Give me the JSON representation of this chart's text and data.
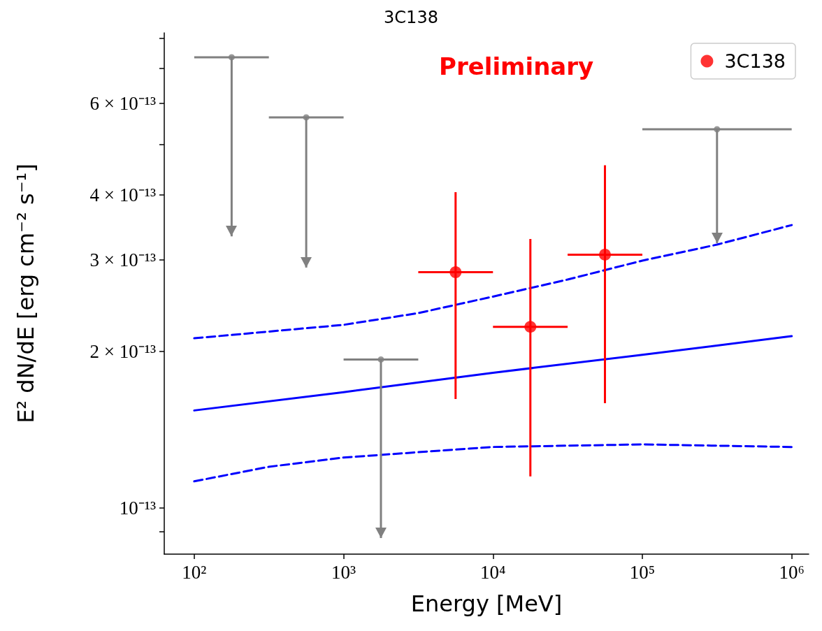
{
  "chart_data": {
    "type": "scatter",
    "title": "3C138",
    "xlabel": "Energy [MeV]",
    "ylabel": "E² dN/dE [erg cm⁻² s⁻¹]",
    "annotations": [
      "Preliminary"
    ],
    "log": "xy",
    "grid": false,
    "legend": "top right",
    "xlim": [
      63,
      1300000
    ],
    "ylim": [
      8.15e-14,
      8.2e-13
    ],
    "xticks": [
      {
        "value": 100,
        "label": "10²"
      },
      {
        "value": 1000,
        "label": "10³"
      },
      {
        "value": 10000,
        "label": "10⁴"
      },
      {
        "value": 100000,
        "label": "10⁵"
      },
      {
        "value": 1000000,
        "label": "10⁶"
      }
    ],
    "yticks": [
      {
        "value": 9e-14,
        "label": null
      },
      {
        "value": 1e-13,
        "label": "10⁻¹³"
      },
      {
        "value": 2e-13,
        "label": "2 × 10⁻¹³"
      },
      {
        "value": 3e-13,
        "label": "3 × 10⁻¹³"
      },
      {
        "value": 4e-13,
        "label": "4 × 10⁻¹³"
      },
      {
        "value": 5e-13,
        "label": null
      },
      {
        "value": 6e-13,
        "label": "6 × 10⁻¹³"
      },
      {
        "value": 7e-13,
        "label": null
      },
      {
        "value": 8e-13,
        "label": null
      }
    ],
    "series": [
      {
        "type": "line",
        "color": "#0000ff",
        "line_style": "solid",
        "x": [
          100,
          1000,
          10000,
          100000,
          1000000
        ],
        "values": [
          1.54e-13,
          1.67e-13,
          1.82e-13,
          1.97e-13,
          2.14e-13
        ]
      },
      {
        "type": "line",
        "color": "#0000ff",
        "line_style": "dashed",
        "x": [
          100,
          1000,
          3162,
          10000,
          31620,
          100000,
          316200,
          1000000
        ],
        "values": [
          2.12e-13,
          2.25e-13,
          2.37e-13,
          2.55e-13,
          2.75e-13,
          2.99e-13,
          3.21e-13,
          3.5e-13
        ]
      },
      {
        "type": "line",
        "color": "#0000ff",
        "line_style": "dashed",
        "x": [
          100,
          316,
          1000,
          3162,
          10000,
          100000,
          1000000
        ],
        "values": [
          1.125e-13,
          1.2e-13,
          1.25e-13,
          1.28e-13,
          1.31e-13,
          1.325e-13,
          1.31e-13
        ]
      },
      {
        "type": "scatter",
        "color": "#808080",
        "marker": "circle",
        "x": [
          178,
          562,
          1778,
          316200
        ],
        "values": [
          7.36e-13,
          5.64e-13,
          1.93e-13,
          5.35e-13
        ],
        "errors": [
          [
            3.33e-13,
            7.36e-13
          ],
          [
            2.9e-13,
            5.64e-13
          ],
          [
            8.75e-14,
            1.93e-13
          ],
          [
            3.23e-13,
            5.35e-13
          ]
        ],
        "xerrors": [
          [
            100,
            316
          ],
          [
            316,
            1000
          ],
          [
            1000,
            3162
          ],
          [
            100000,
            1000000
          ]
        ]
      },
      {
        "type": "scatter",
        "name": "3C138",
        "color": "#ff0000",
        "marker": "circle",
        "x": [
          5620,
          17800,
          56200
        ],
        "values": [
          2.84e-13,
          2.23e-13,
          3.07e-13
        ],
        "errors": [
          [
            1.62e-13,
            4.05e-13
          ],
          [
            1.15e-13,
            3.29e-13
          ],
          [
            1.59e-13,
            4.56e-13
          ]
        ],
        "xerrors": [
          [
            3162,
            10000
          ],
          [
            10000,
            31620
          ],
          [
            31620,
            100000
          ]
        ]
      }
    ]
  }
}
